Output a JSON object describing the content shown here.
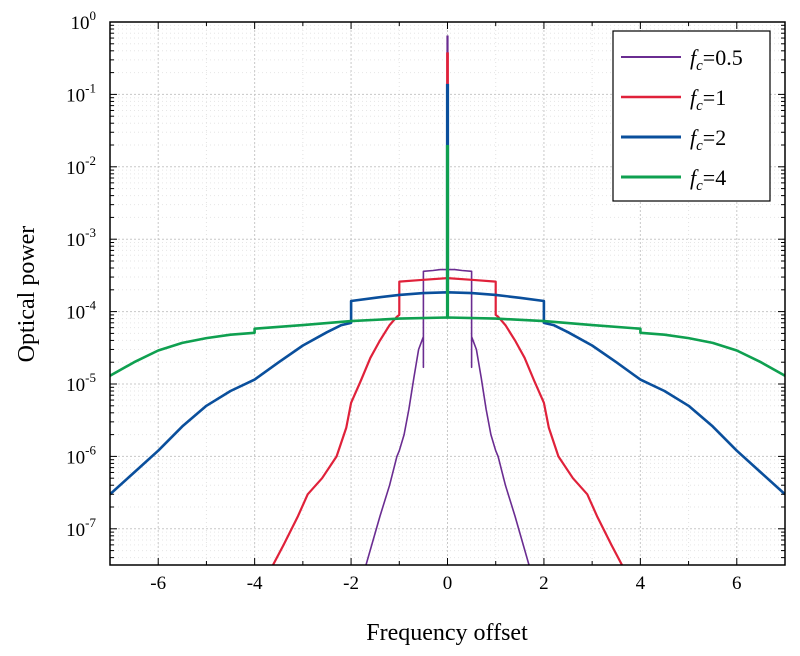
{
  "chart_data": {
    "type": "line",
    "xlabel": "Frequency offset",
    "ylabel": "Optical power",
    "xlim": [
      -7,
      7
    ],
    "ylim_log10": [
      -7.5,
      0
    ],
    "yscale": "log",
    "grid": true,
    "legend_position": "top-right",
    "x_ticks": [
      {
        "v": -6,
        "label": "-6"
      },
      {
        "v": -4,
        "label": "-4"
      },
      {
        "v": -2,
        "label": "-2"
      },
      {
        "v": 0,
        "label": "0"
      },
      {
        "v": 2,
        "label": "2"
      },
      {
        "v": 4,
        "label": "4"
      },
      {
        "v": 6,
        "label": "6"
      }
    ],
    "y_ticks": [
      {
        "exp": 0,
        "base": "10",
        "sup": "0"
      },
      {
        "exp": -1,
        "base": "10",
        "sup": "-1"
      },
      {
        "exp": -2,
        "base": "10",
        "sup": "-2"
      },
      {
        "exp": -3,
        "base": "10",
        "sup": "-3"
      },
      {
        "exp": -4,
        "base": "10",
        "sup": "-4"
      },
      {
        "exp": -5,
        "base": "10",
        "sup": "-5"
      },
      {
        "exp": -6,
        "base": "10",
        "sup": "-6"
      },
      {
        "exp": -7,
        "base": "10",
        "sup": "-7"
      }
    ],
    "series": [
      {
        "sym": "f",
        "sub": "c",
        "eq": "=0.5",
        "color": "#6a2c91",
        "width": 1.6,
        "peak": 0.65,
        "points": [
          [
            -1.7,
            3e-08
          ],
          [
            -1.4,
            1.5e-07
          ],
          [
            -1.2,
            4e-07
          ],
          [
            -1.05,
            1e-06
          ],
          [
            -1.0,
            1.2e-06
          ],
          [
            -0.9,
            2e-06
          ],
          [
            -0.8,
            4.5e-06
          ],
          [
            -0.7,
            1.2e-05
          ],
          [
            -0.6,
            3e-05
          ],
          [
            -0.5,
            4.5e-05
          ],
          [
            -0.5,
            1.7e-05
          ],
          [
            -0.5,
            0.00036
          ],
          [
            -0.3,
            0.00037
          ],
          [
            -0.15,
            0.00038
          ],
          [
            0,
            0.00038
          ],
          [
            0.15,
            0.00038
          ],
          [
            0.3,
            0.00037
          ],
          [
            0.5,
            0.00036
          ],
          [
            0.5,
            1.7e-05
          ],
          [
            0.5,
            4.5e-05
          ],
          [
            0.6,
            3e-05
          ],
          [
            0.7,
            1.2e-05
          ],
          [
            0.8,
            4.5e-06
          ],
          [
            0.9,
            2e-06
          ],
          [
            1.0,
            1.2e-06
          ],
          [
            1.05,
            1e-06
          ],
          [
            1.2,
            4e-07
          ],
          [
            1.4,
            1.5e-07
          ],
          [
            1.7,
            3e-08
          ]
        ]
      },
      {
        "sym": "f",
        "sub": "c",
        "eq": "=1",
        "color": "#e0213a",
        "width": 2.2,
        "peak": 0.38,
        "points": [
          [
            -3.7,
            2.5e-08
          ],
          [
            -3.4,
            6e-08
          ],
          [
            -3.1,
            1.5e-07
          ],
          [
            -2.9,
            3e-07
          ],
          [
            -2.6,
            5e-07
          ],
          [
            -2.3,
            1e-06
          ],
          [
            -2.1,
            2.5e-06
          ],
          [
            -2.0,
            5.5e-06
          ],
          [
            -1.8,
            1.1e-05
          ],
          [
            -1.6,
            2.3e-05
          ],
          [
            -1.4,
            4e-05
          ],
          [
            -1.2,
            6.5e-05
          ],
          [
            -1.05,
            8.5e-05
          ],
          [
            -1.0,
            9e-05
          ],
          [
            -1.0,
            0.00026
          ],
          [
            -0.5,
            0.000275
          ],
          [
            0,
            0.00029
          ],
          [
            0.5,
            0.000275
          ],
          [
            1.0,
            0.00026
          ],
          [
            1.0,
            9e-05
          ],
          [
            1.05,
            8.5e-05
          ],
          [
            1.2,
            6.5e-05
          ],
          [
            1.4,
            4e-05
          ],
          [
            1.6,
            2.3e-05
          ],
          [
            1.8,
            1.1e-05
          ],
          [
            2.0,
            5.5e-06
          ],
          [
            2.1,
            2.5e-06
          ],
          [
            2.3,
            1e-06
          ],
          [
            2.6,
            5e-07
          ],
          [
            2.9,
            3e-07
          ],
          [
            3.1,
            1.5e-07
          ],
          [
            3.4,
            6e-08
          ],
          [
            3.7,
            2.5e-08
          ]
        ]
      },
      {
        "sym": "f",
        "sub": "c",
        "eq": "=2",
        "color": "#0a4f9c",
        "width": 2.6,
        "peak": 0.14,
        "points": [
          [
            -7.0,
            3e-07
          ],
          [
            -6.5,
            6e-07
          ],
          [
            -6.0,
            1.2e-06
          ],
          [
            -5.5,
            2.6e-06
          ],
          [
            -5.0,
            5e-06
          ],
          [
            -4.5,
            8e-06
          ],
          [
            -4.0,
            1.15e-05
          ],
          [
            -3.5,
            2e-05
          ],
          [
            -3.0,
            3.4e-05
          ],
          [
            -2.5,
            5.2e-05
          ],
          [
            -2.2,
            6.5e-05
          ],
          [
            -2.0,
            7e-05
          ],
          [
            -2.0,
            0.00014
          ],
          [
            -1.5,
            0.000155
          ],
          [
            -1.0,
            0.00017
          ],
          [
            -0.5,
            0.00018
          ],
          [
            0,
            0.000185
          ],
          [
            0.5,
            0.00018
          ],
          [
            1.0,
            0.00017
          ],
          [
            1.5,
            0.000155
          ],
          [
            2.0,
            0.00014
          ],
          [
            2.0,
            7e-05
          ],
          [
            2.2,
            6.5e-05
          ],
          [
            2.5,
            5.2e-05
          ],
          [
            3.0,
            3.4e-05
          ],
          [
            3.5,
            2e-05
          ],
          [
            4.0,
            1.15e-05
          ],
          [
            4.5,
            8e-06
          ],
          [
            5.0,
            5e-06
          ],
          [
            5.5,
            2.6e-06
          ],
          [
            6.0,
            1.2e-06
          ],
          [
            6.5,
            6e-07
          ],
          [
            7.0,
            3e-07
          ]
        ]
      },
      {
        "sym": "f",
        "sub": "c",
        "eq": "=4",
        "color": "#0fa050",
        "width": 2.6,
        "peak": 0.02,
        "points": [
          [
            -7.0,
            1.3e-05
          ],
          [
            -6.5,
            2e-05
          ],
          [
            -6.0,
            2.9e-05
          ],
          [
            -5.5,
            3.7e-05
          ],
          [
            -5.0,
            4.3e-05
          ],
          [
            -4.5,
            4.8e-05
          ],
          [
            -4.0,
            5.1e-05
          ],
          [
            -4.0,
            5.8e-05
          ],
          [
            -3.0,
            6.5e-05
          ],
          [
            -2.0,
            7.4e-05
          ],
          [
            -1.0,
            8e-05
          ],
          [
            0,
            8.3e-05
          ],
          [
            1.0,
            8e-05
          ],
          [
            2.0,
            7.4e-05
          ],
          [
            3.0,
            6.5e-05
          ],
          [
            4.0,
            5.8e-05
          ],
          [
            4.0,
            5.1e-05
          ],
          [
            4.5,
            4.8e-05
          ],
          [
            5.0,
            4.3e-05
          ],
          [
            5.5,
            3.7e-05
          ],
          [
            6.0,
            2.9e-05
          ],
          [
            6.5,
            2e-05
          ],
          [
            7.0,
            1.3e-05
          ]
        ]
      }
    ]
  }
}
